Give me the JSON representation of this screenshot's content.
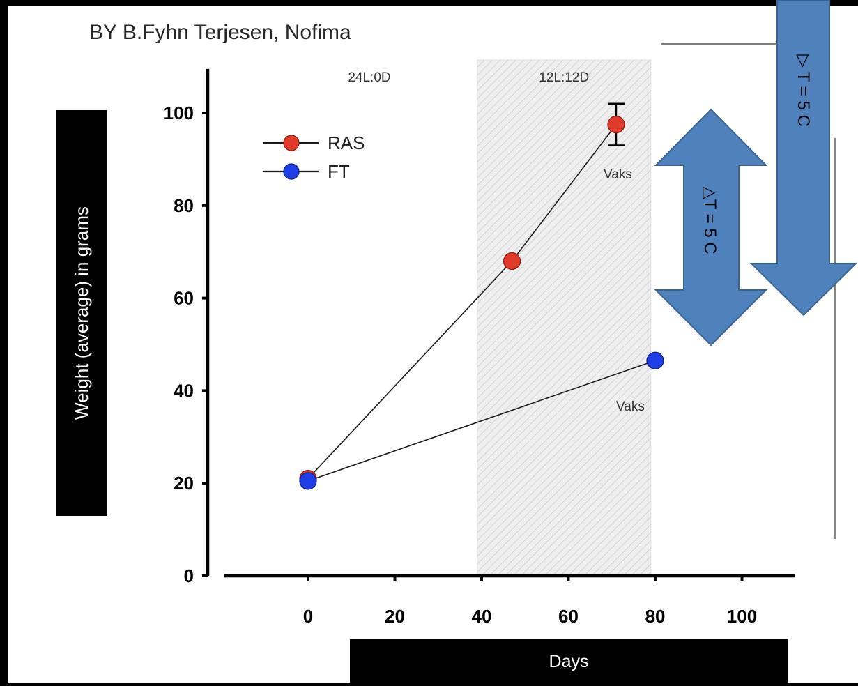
{
  "header": {
    "byline": "BY B.Fyhn Terjesen, Nofima"
  },
  "labels": {
    "ylabel": "Weight (average) in grams",
    "xlabel": "Days"
  },
  "regions": [
    {
      "label": "24L:0D",
      "x_start": -10,
      "x_end": 39,
      "shaded": false
    },
    {
      "label": "12L:12D",
      "x_start": 39,
      "x_end": 79,
      "shaded": true
    }
  ],
  "annotations": [
    {
      "text": "Vaks",
      "series": "RAS"
    },
    {
      "text": "Vaks",
      "series": "FT"
    }
  ],
  "arrows": {
    "small": {
      "label": "△T = 5 C",
      "color": "#4F81BD"
    },
    "large": {
      "label": "▷ T = 5 C",
      "color": "#4F81BD"
    }
  },
  "chart_data": {
    "type": "line",
    "title": "",
    "xlabel": "Days",
    "ylabel": "Weight (average) in grams",
    "xlim": [
      -17,
      113
    ],
    "ylim": [
      0,
      110
    ],
    "xticks": [
      0,
      20,
      40,
      60,
      80,
      100
    ],
    "yticks": [
      0,
      20,
      40,
      60,
      80,
      100
    ],
    "grid": false,
    "legend": "top-left",
    "series": [
      {
        "name": "RAS",
        "color": "#e03a2a",
        "x": [
          0,
          47,
          71
        ],
        "y": [
          21,
          68,
          97.5
        ],
        "error": [
          null,
          null,
          4.5
        ]
      },
      {
        "name": "FT",
        "color": "#1f3fe6",
        "x": [
          0,
          80
        ],
        "y": [
          20.5,
          46.5
        ],
        "error": [
          null,
          null
        ]
      }
    ]
  }
}
